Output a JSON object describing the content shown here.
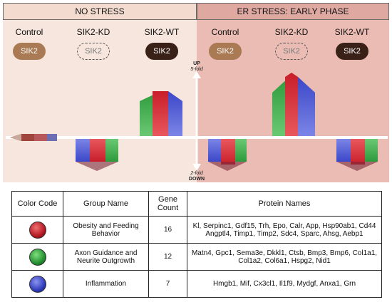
{
  "headers": {
    "left": "NO STRESS",
    "right": "ER STRESS: EARLY PHASE"
  },
  "columns": {
    "no_stress": [
      {
        "label": "Control",
        "pill": "SIK2"
      },
      {
        "label": "SIK2-KD",
        "pill": "SIK2"
      },
      {
        "label": "SIK2-WT",
        "pill": "SIK2"
      }
    ],
    "er_stress": [
      {
        "label": "Control",
        "pill": "SIK2"
      },
      {
        "label": "SIK2-KD",
        "pill": "SIK2"
      },
      {
        "label": "SIK2-WT",
        "pill": "SIK2"
      }
    ]
  },
  "axis": {
    "up": "UP",
    "up_fold": "5-fold",
    "down_fold": "2-fold",
    "down": "DOWN"
  },
  "colors": {
    "no_stress_bg": "#f7e6dd",
    "er_stress_bg": "#ebbcb4",
    "red": "#c81e2a",
    "green": "#2e9a3c",
    "blue": "#3b47c8",
    "pill_tan": "#a97a54",
    "pill_dark": "#3a2118"
  },
  "table": {
    "headers": {
      "color_code": "Color Code",
      "group_name": "Group Name",
      "gene_count": "Gene Count",
      "protein_names": "Protein Names"
    },
    "rows": [
      {
        "color": "red",
        "group": "Obesity and Feeding Behavior",
        "count": "16",
        "proteins": "Kl, Serpinc1, Gdf15, Trh, Epo, Calr, App, Hsp90ab1, Cd44 Angptl4, Timp1, Timp2, Sdc4, Sparc, Ahsg, Aebp1"
      },
      {
        "color": "green",
        "group": "Axon Guidance and Neurite Outgrowth",
        "count": "12",
        "proteins": "Matn4, Gpc1, Sema3e, Dkkl1, Ctsb, Bmp3, Bmp6, Col1a1, Col1a2, Col6a1, Hspg2, Nid1"
      },
      {
        "color": "blue",
        "group": "Inflammation",
        "count": "7",
        "proteins": "Hmgb1, Mif, Cx3cl1, Il1f9, Mydgf, Anxa1, Grn"
      }
    ]
  }
}
